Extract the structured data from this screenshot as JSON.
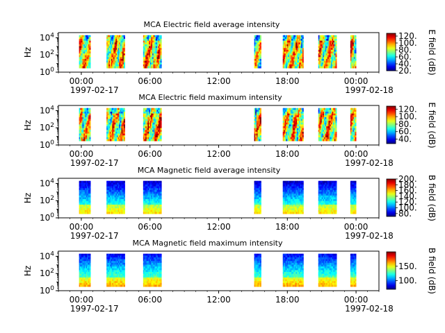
{
  "chart_data": [
    {
      "type": "heatmap",
      "title": "MCA  Electric field average intensity",
      "ylabel": "Hz",
      "colorbar_label": "E field (dB)",
      "colorbar_ticks": [
        "20.",
        "40.",
        "60.",
        "80.",
        "100.",
        "120."
      ],
      "colorbar_range": [
        20,
        128
      ],
      "data_band_hz": [
        3,
        20000
      ],
      "style": "electric"
    },
    {
      "type": "heatmap",
      "title": "MCA  Electric field maximum intensity",
      "ylabel": "Hz",
      "colorbar_label": "E field (dB)",
      "colorbar_ticks": [
        "40.",
        "60.",
        "80.",
        "100.",
        "120."
      ],
      "colorbar_range": [
        28,
        128
      ],
      "data_band_hz": [
        3,
        20000
      ],
      "style": "electric"
    },
    {
      "type": "heatmap",
      "title": "MCA  Magnetic field average intensity",
      "ylabel": "Hz",
      "colorbar_label": "B field (dB)",
      "colorbar_ticks": [
        "80.",
        "100.",
        "120.",
        "140.",
        "160.",
        "180.",
        "200."
      ],
      "colorbar_range": [
        70,
        200
      ],
      "data_band_hz": [
        3,
        20000
      ],
      "style": "magnetic"
    },
    {
      "type": "heatmap",
      "title": "MCA  Magnetic field maximum intensity",
      "ylabel": "Hz",
      "colorbar_label": "B field (dB)",
      "colorbar_ticks": [
        "100.",
        "150."
      ],
      "colorbar_range": [
        70,
        200
      ],
      "data_band_hz": [
        3,
        20000
      ],
      "style": "magnetic"
    }
  ],
  "shared_axes": {
    "y_scale": "log",
    "y_ticks": [
      {
        "base": "10",
        "exp": "0"
      },
      {
        "base": "10",
        "exp": "2"
      },
      {
        "base": "10",
        "exp": "4"
      }
    ],
    "x_range_hours": [
      -2,
      26
    ],
    "x_tick_hours": [
      0,
      6,
      12,
      18,
      24
    ],
    "x_tick_labels": [
      "00:00",
      "06:00",
      "12:00",
      "18:00",
      "00:00"
    ],
    "x_minor_step_hours": 1,
    "date_start": "1997-02-17",
    "date_end": "1997-02-18",
    "data_intervals_hours": [
      [
        -0.2,
        0.8
      ],
      [
        2.2,
        3.8
      ],
      [
        5.4,
        7.0
      ],
      [
        15.1,
        15.7
      ],
      [
        17.6,
        19.4
      ],
      [
        20.7,
        22.3
      ],
      [
        23.5,
        24.0
      ]
    ]
  }
}
